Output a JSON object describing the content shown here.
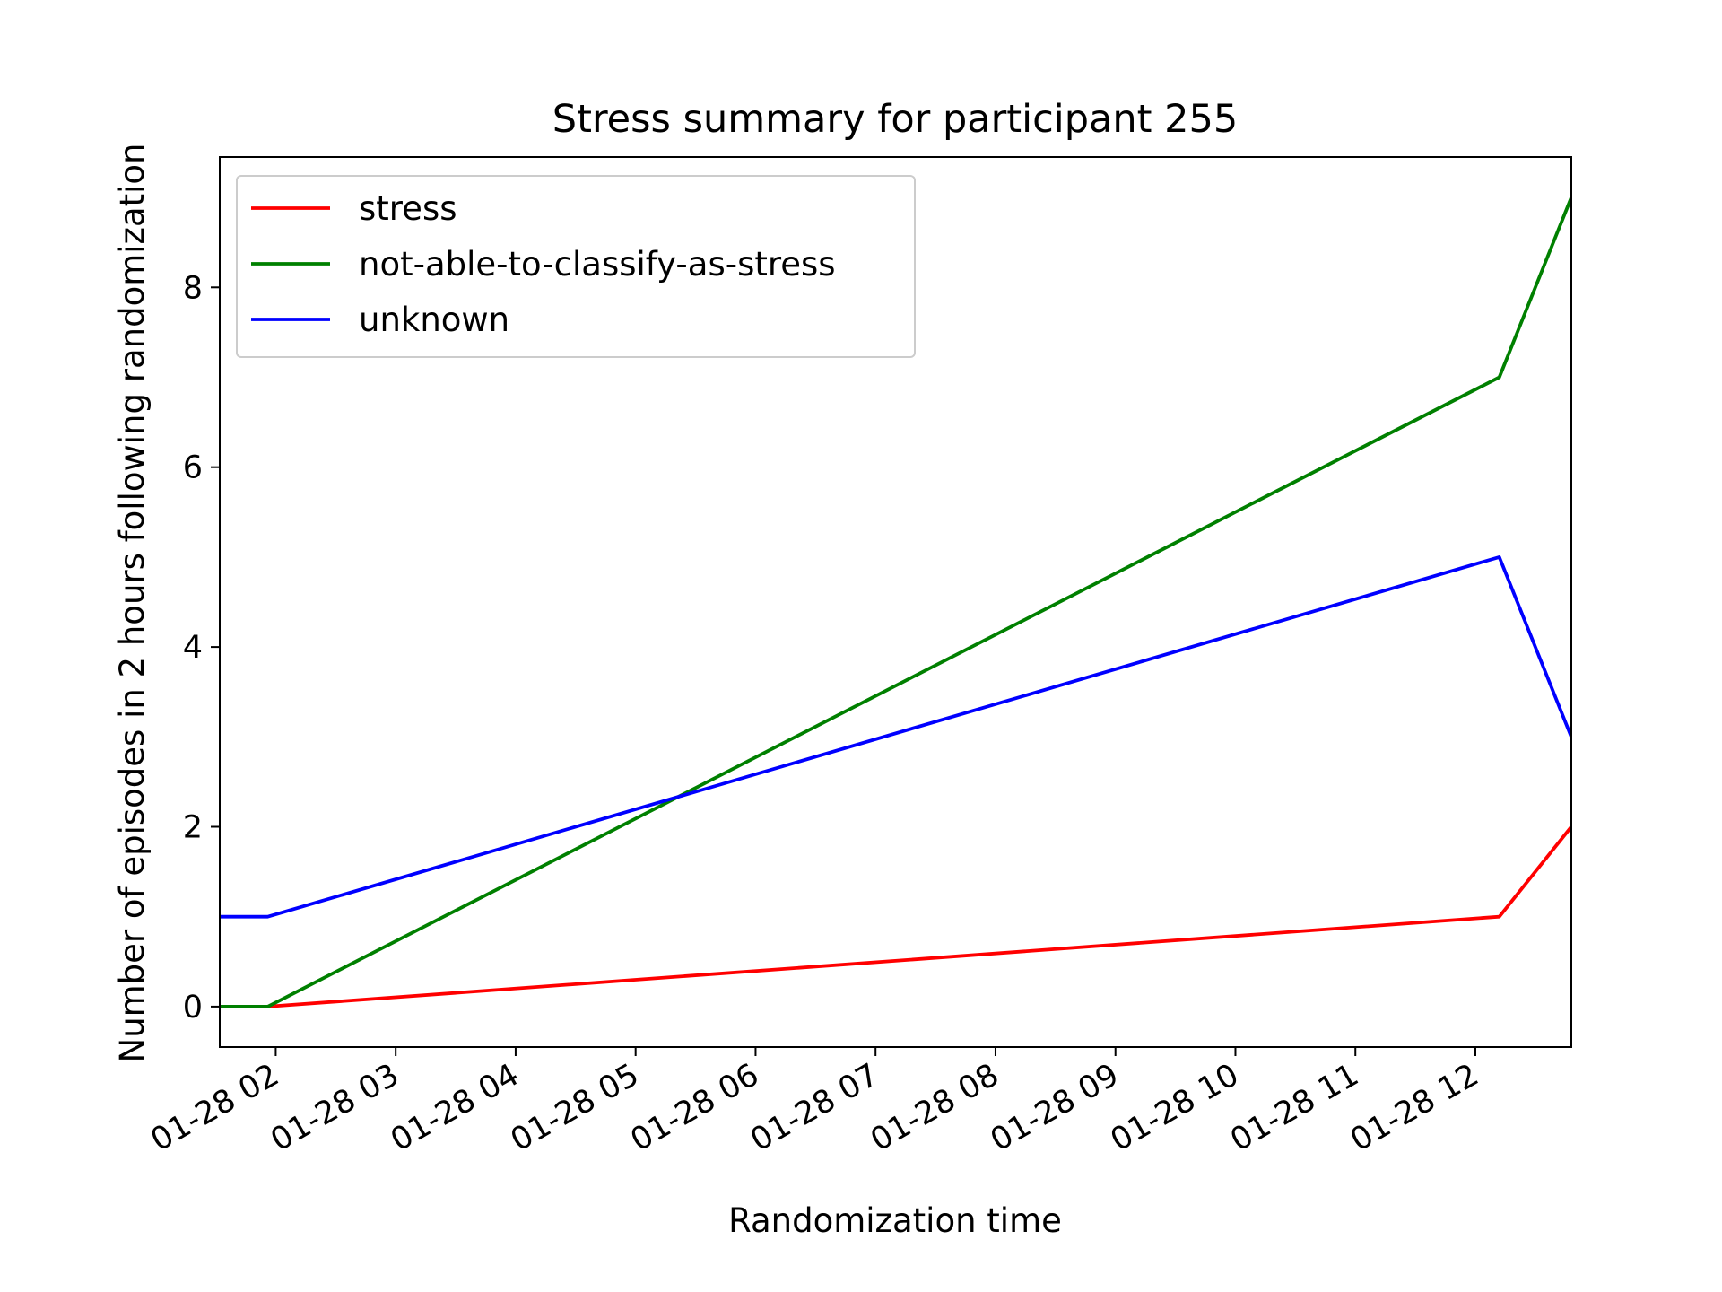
{
  "chart_data": {
    "type": "line",
    "title": "Stress summary for participant 255",
    "xlabel": "Randomization time",
    "ylabel": "Number of episodes in 2 hours following randomization",
    "x_axis": {
      "type": "datetime",
      "range": [
        "01-28 01:32",
        "01-28 12:48"
      ],
      "tick_values": [
        "01-28 02:00",
        "01-28 03:00",
        "01-28 04:00",
        "01-28 05:00",
        "01-28 06:00",
        "01-28 07:00",
        "01-28 08:00",
        "01-28 09:00",
        "01-28 10:00",
        "01-28 11:00",
        "01-28 12:00"
      ],
      "tick_labels": [
        "01-28 02",
        "01-28 03",
        "01-28 04",
        "01-28 05",
        "01-28 06",
        "01-28 07",
        "01-28 08",
        "01-28 09",
        "01-28 10",
        "01-28 11",
        "01-28 12"
      ]
    },
    "y_axis": {
      "range": [
        -0.45,
        9.45
      ],
      "tick_values": [
        0,
        2,
        4,
        6,
        8
      ],
      "tick_labels": [
        "0",
        "2",
        "4",
        "6",
        "8"
      ]
    },
    "x": [
      "01-28 01:32",
      "01-28 01:56",
      "01-28 12:12",
      "01-28 12:48"
    ],
    "series": [
      {
        "name": "stress",
        "color": "#ff0000",
        "values": [
          0,
          0,
          1,
          2
        ]
      },
      {
        "name": "not-able-to-classify-as-stress",
        "color": "#008000",
        "values": [
          0,
          0,
          7,
          9
        ]
      },
      {
        "name": "unknown",
        "color": "#0000ff",
        "values": [
          1,
          1,
          5,
          3
        ]
      }
    ],
    "legend_position": "top-left",
    "grid": false
  }
}
